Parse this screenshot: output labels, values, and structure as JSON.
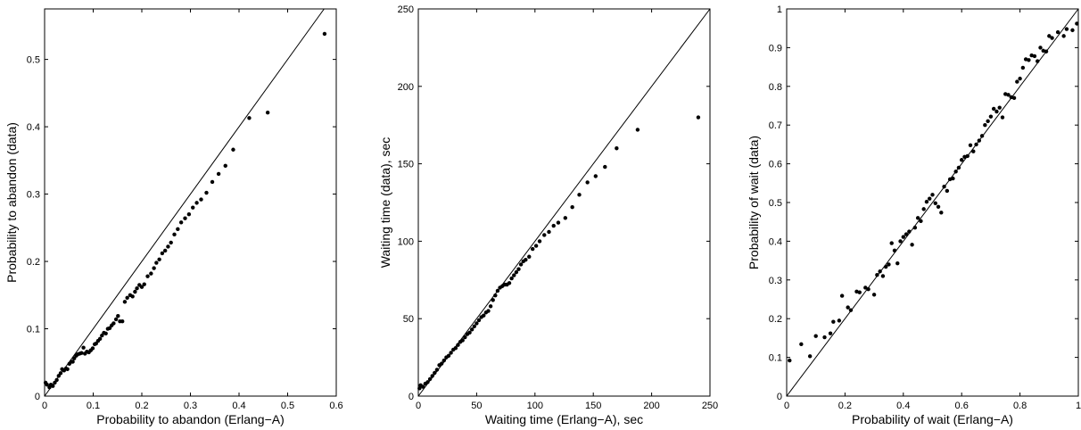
{
  "chart_data": [
    {
      "type": "scatter",
      "xlabel": "Probability to abandon (Erlang−A)",
      "ylabel": "Probability to abandon (data)",
      "xlim": [
        0,
        0.6
      ],
      "ylim": [
        0,
        0.575
      ],
      "xticks": [
        0,
        0.1,
        0.2,
        0.3,
        0.4,
        0.5,
        0.6
      ],
      "xtick_labels": [
        "0",
        "0.1",
        "0.2",
        "0.3",
        "0.4",
        "0.5",
        "0.6"
      ],
      "yticks": [
        0,
        0.1,
        0.2,
        0.3,
        0.4,
        0.5
      ],
      "ytick_labels": [
        "0",
        "0.1",
        "0.2",
        "0.3",
        "0.4",
        "0.5"
      ],
      "reference_line": "y=x",
      "points": [
        [
          0.002,
          0.02
        ],
        [
          0.005,
          0.017
        ],
        [
          0.01,
          0.013
        ],
        [
          0.013,
          0.017
        ],
        [
          0.017,
          0.015
        ],
        [
          0.021,
          0.02
        ],
        [
          0.025,
          0.024
        ],
        [
          0.029,
          0.03
        ],
        [
          0.033,
          0.034
        ],
        [
          0.036,
          0.04
        ],
        [
          0.04,
          0.038
        ],
        [
          0.044,
          0.041
        ],
        [
          0.047,
          0.04
        ],
        [
          0.051,
          0.048
        ],
        [
          0.055,
          0.051
        ],
        [
          0.058,
          0.051
        ],
        [
          0.061,
          0.056
        ],
        [
          0.065,
          0.06
        ],
        [
          0.068,
          0.062
        ],
        [
          0.072,
          0.063
        ],
        [
          0.076,
          0.064
        ],
        [
          0.08,
          0.072
        ],
        [
          0.083,
          0.063
        ],
        [
          0.087,
          0.066
        ],
        [
          0.091,
          0.065
        ],
        [
          0.095,
          0.068
        ],
        [
          0.099,
          0.071
        ],
        [
          0.103,
          0.077
        ],
        [
          0.106,
          0.078
        ],
        [
          0.11,
          0.082
        ],
        [
          0.114,
          0.085
        ],
        [
          0.118,
          0.09
        ],
        [
          0.122,
          0.094
        ],
        [
          0.126,
          0.093
        ],
        [
          0.13,
          0.1
        ],
        [
          0.134,
          0.101
        ],
        [
          0.138,
          0.105
        ],
        [
          0.142,
          0.108
        ],
        [
          0.147,
          0.114
        ],
        [
          0.151,
          0.119
        ],
        [
          0.155,
          0.111
        ],
        [
          0.16,
          0.111
        ],
        [
          0.165,
          0.14
        ],
        [
          0.17,
          0.146
        ],
        [
          0.176,
          0.15
        ],
        [
          0.181,
          0.148
        ],
        [
          0.186,
          0.155
        ],
        [
          0.19,
          0.16
        ],
        [
          0.195,
          0.165
        ],
        [
          0.2,
          0.162
        ],
        [
          0.205,
          0.166
        ],
        [
          0.212,
          0.178
        ],
        [
          0.219,
          0.182
        ],
        [
          0.225,
          0.19
        ],
        [
          0.23,
          0.198
        ],
        [
          0.236,
          0.203
        ],
        [
          0.242,
          0.212
        ],
        [
          0.248,
          0.216
        ],
        [
          0.254,
          0.222
        ],
        [
          0.26,
          0.228
        ],
        [
          0.267,
          0.24
        ],
        [
          0.274,
          0.248
        ],
        [
          0.281,
          0.258
        ],
        [
          0.289,
          0.264
        ],
        [
          0.297,
          0.27
        ],
        [
          0.305,
          0.28
        ],
        [
          0.313,
          0.287
        ],
        [
          0.322,
          0.292
        ],
        [
          0.333,
          0.302
        ],
        [
          0.345,
          0.318
        ],
        [
          0.358,
          0.33
        ],
        [
          0.372,
          0.342
        ],
        [
          0.388,
          0.366
        ],
        [
          0.421,
          0.413
        ],
        [
          0.459,
          0.421
        ],
        [
          0.576,
          0.538
        ]
      ]
    },
    {
      "type": "scatter",
      "xlabel": "Waiting time (Erlang−A), sec",
      "ylabel": "Waiting time (data), sec",
      "xlim": [
        0,
        250
      ],
      "ylim": [
        0,
        250
      ],
      "xticks": [
        0,
        50,
        100,
        150,
        200,
        250
      ],
      "xtick_labels": [
        "0",
        "50",
        "100",
        "150",
        "200",
        "250"
      ],
      "yticks": [
        0,
        50,
        100,
        150,
        200,
        250
      ],
      "ytick_labels": [
        "0",
        "50",
        "100",
        "150",
        "200",
        "250"
      ],
      "reference_line": "y=x",
      "points": [
        [
          1,
          5
        ],
        [
          2,
          7
        ],
        [
          4,
          6
        ],
        [
          6,
          8
        ],
        [
          8,
          9
        ],
        [
          10,
          11
        ],
        [
          12,
          13
        ],
        [
          14,
          15
        ],
        [
          16,
          17
        ],
        [
          18,
          20
        ],
        [
          20,
          21
        ],
        [
          22,
          23
        ],
        [
          24,
          25
        ],
        [
          26,
          26
        ],
        [
          28,
          28
        ],
        [
          30,
          30
        ],
        [
          32,
          31
        ],
        [
          34,
          33
        ],
        [
          36,
          35
        ],
        [
          38,
          36
        ],
        [
          40,
          38
        ],
        [
          42,
          40
        ],
        [
          44,
          41
        ],
        [
          46,
          43
        ],
        [
          48,
          45
        ],
        [
          50,
          47
        ],
        [
          52,
          49
        ],
        [
          54,
          51
        ],
        [
          56,
          52
        ],
        [
          58,
          54
        ],
        [
          60,
          55
        ],
        [
          62,
          58
        ],
        [
          64,
          62
        ],
        [
          66,
          65
        ],
        [
          68,
          68
        ],
        [
          70,
          70
        ],
        [
          72,
          71
        ],
        [
          74,
          72
        ],
        [
          76,
          72
        ],
        [
          78,
          73
        ],
        [
          80,
          76
        ],
        [
          82,
          78
        ],
        [
          84,
          80
        ],
        [
          86,
          82
        ],
        [
          88,
          85
        ],
        [
          90,
          87
        ],
        [
          92,
          88
        ],
        [
          95,
          90
        ],
        [
          98,
          95
        ],
        [
          101,
          97
        ],
        [
          104,
          100
        ],
        [
          108,
          104
        ],
        [
          112,
          106
        ],
        [
          116,
          110
        ],
        [
          120,
          112
        ],
        [
          126,
          115
        ],
        [
          132,
          122
        ],
        [
          138,
          130
        ],
        [
          145,
          138
        ],
        [
          152,
          142
        ],
        [
          160,
          148
        ],
        [
          170,
          160
        ],
        [
          188,
          172
        ],
        [
          240,
          180
        ]
      ]
    },
    {
      "type": "scatter",
      "xlabel": "Probability of wait (Erlang−A)",
      "ylabel": "Probability of wait (data)",
      "xlim": [
        0,
        1
      ],
      "ylim": [
        0,
        1
      ],
      "xticks": [
        0,
        0.2,
        0.4,
        0.6,
        0.8,
        1
      ],
      "xtick_labels": [
        "0",
        "0.2",
        "0.4",
        "0.6",
        "0.8",
        "1"
      ],
      "yticks": [
        0,
        0.1,
        0.2,
        0.3,
        0.4,
        0.5,
        0.6,
        0.7,
        0.8,
        0.9,
        1
      ],
      "ytick_labels": [
        "0",
        "0.1",
        "0.2",
        "0.3",
        "0.4",
        "0.5",
        "0.6",
        "0.7",
        "0.8",
        "0.9",
        "1"
      ],
      "reference_line": "y=x",
      "points": [
        [
          0.01,
          0.092
        ],
        [
          0.05,
          0.134
        ],
        [
          0.08,
          0.103
        ],
        [
          0.1,
          0.155
        ],
        [
          0.13,
          0.152
        ],
        [
          0.15,
          0.162
        ],
        [
          0.16,
          0.192
        ],
        [
          0.18,
          0.195
        ],
        [
          0.19,
          0.259
        ],
        [
          0.21,
          0.229
        ],
        [
          0.22,
          0.222
        ],
        [
          0.24,
          0.27
        ],
        [
          0.25,
          0.268
        ],
        [
          0.27,
          0.28
        ],
        [
          0.28,
          0.276
        ],
        [
          0.3,
          0.262
        ],
        [
          0.31,
          0.313
        ],
        [
          0.32,
          0.322
        ],
        [
          0.33,
          0.31
        ],
        [
          0.34,
          0.334
        ],
        [
          0.35,
          0.34
        ],
        [
          0.36,
          0.395
        ],
        [
          0.37,
          0.376
        ],
        [
          0.38,
          0.343
        ],
        [
          0.39,
          0.4
        ],
        [
          0.4,
          0.411
        ],
        [
          0.41,
          0.418
        ],
        [
          0.42,
          0.425
        ],
        [
          0.43,
          0.391
        ],
        [
          0.44,
          0.435
        ],
        [
          0.45,
          0.46
        ],
        [
          0.46,
          0.452
        ],
        [
          0.47,
          0.483
        ],
        [
          0.48,
          0.502
        ],
        [
          0.49,
          0.51
        ],
        [
          0.5,
          0.52
        ],
        [
          0.51,
          0.498
        ],
        [
          0.52,
          0.489
        ],
        [
          0.53,
          0.474
        ],
        [
          0.54,
          0.541
        ],
        [
          0.55,
          0.53
        ],
        [
          0.56,
          0.56
        ],
        [
          0.57,
          0.562
        ],
        [
          0.58,
          0.58
        ],
        [
          0.59,
          0.59
        ],
        [
          0.6,
          0.61
        ],
        [
          0.61,
          0.618
        ],
        [
          0.62,
          0.62
        ],
        [
          0.63,
          0.648
        ],
        [
          0.64,
          0.632
        ],
        [
          0.65,
          0.65
        ],
        [
          0.66,
          0.66
        ],
        [
          0.67,
          0.672
        ],
        [
          0.68,
          0.7
        ],
        [
          0.69,
          0.71
        ],
        [
          0.7,
          0.722
        ],
        [
          0.71,
          0.742
        ],
        [
          0.72,
          0.735
        ],
        [
          0.73,
          0.745
        ],
        [
          0.74,
          0.72
        ],
        [
          0.75,
          0.78
        ],
        [
          0.76,
          0.778
        ],
        [
          0.77,
          0.772
        ],
        [
          0.78,
          0.77
        ],
        [
          0.79,
          0.812
        ],
        [
          0.8,
          0.82
        ],
        [
          0.81,
          0.848
        ],
        [
          0.82,
          0.87
        ],
        [
          0.83,
          0.868
        ],
        [
          0.84,
          0.88
        ],
        [
          0.85,
          0.878
        ],
        [
          0.86,
          0.865
        ],
        [
          0.87,
          0.9
        ],
        [
          0.88,
          0.892
        ],
        [
          0.89,
          0.89
        ],
        [
          0.9,
          0.93
        ],
        [
          0.91,
          0.925
        ],
        [
          0.93,
          0.94
        ],
        [
          0.95,
          0.93
        ],
        [
          0.96,
          0.948
        ],
        [
          0.98,
          0.945
        ],
        [
          0.995,
          0.962
        ]
      ]
    }
  ]
}
